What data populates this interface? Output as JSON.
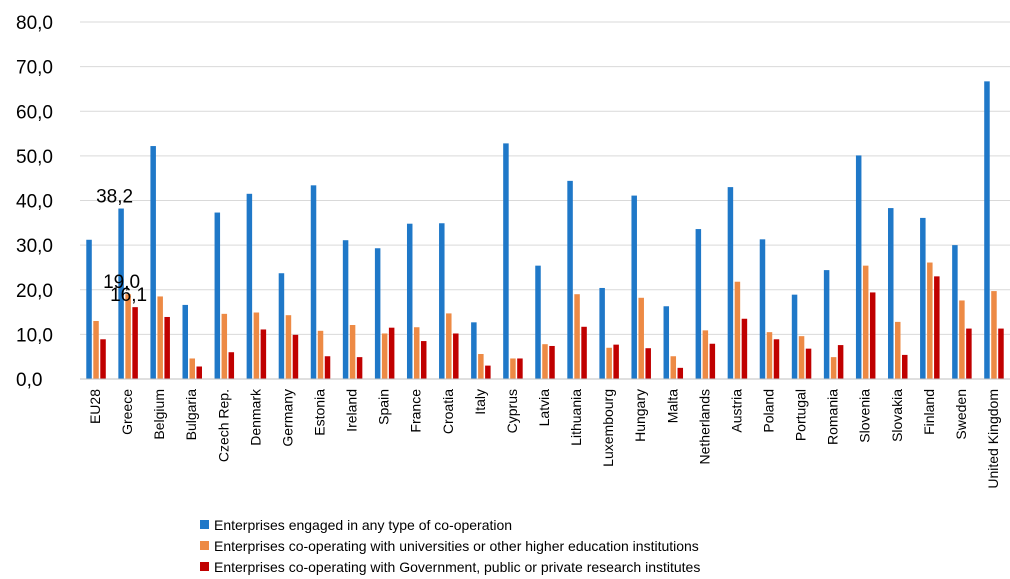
{
  "chart_data": {
    "type": "bar",
    "categories": [
      "EU28",
      "Greece",
      "Belgium",
      "Bulgaria",
      "Czech Rep.",
      "Denmark",
      "Germany",
      "Estonia",
      "Ireland",
      "Spain",
      "France",
      "Croatia",
      "Italy",
      "Cyprus",
      "Latvia",
      "Lithuania",
      "Luxembourg",
      "Hungary",
      "Malta",
      "Netherlands",
      "Austria",
      "Poland",
      "Portugal",
      "Romania",
      "Slovenia",
      "Slovakia",
      "Finland",
      "Sweden",
      "United Kingdom"
    ],
    "series": [
      {
        "name": "Enterprises engaged in any type of co-operation",
        "color": "#1f78c8",
        "values": [
          31.2,
          38.2,
          52.2,
          16.6,
          37.3,
          41.5,
          23.7,
          43.4,
          31.1,
          29.3,
          34.8,
          34.9,
          12.7,
          52.8,
          25.4,
          44.4,
          20.4,
          41.1,
          16.3,
          33.6,
          43.0,
          31.3,
          18.9,
          24.4,
          50.1,
          38.3,
          36.1,
          30.0,
          66.7
        ]
      },
      {
        "name": "Enterprises co-operating with universities or other higher education institutions",
        "color": "#ed8a45",
        "values": [
          13.0,
          19.0,
          18.5,
          4.6,
          14.6,
          14.9,
          14.3,
          10.8,
          12.1,
          10.2,
          11.6,
          14.7,
          5.6,
          4.6,
          7.8,
          19.0,
          7.0,
          18.2,
          5.1,
          10.9,
          21.8,
          10.5,
          9.6,
          4.9,
          25.4,
          12.8,
          26.1,
          17.6,
          19.7
        ]
      },
      {
        "name": "Enterprises co-operating with Government, public or private research institutes",
        "color": "#c00000",
        "values": [
          8.9,
          16.1,
          13.9,
          2.8,
          6.0,
          11.1,
          9.9,
          5.1,
          4.9,
          11.5,
          8.5,
          10.2,
          3.0,
          4.6,
          7.4,
          11.7,
          7.7,
          6.9,
          2.5,
          7.9,
          13.5,
          8.9,
          6.8,
          7.6,
          19.4,
          5.4,
          23.0,
          11.3,
          11.3
        ]
      }
    ],
    "ylim": [
      0,
      80
    ],
    "yticks": [
      "0,0",
      "10,0",
      "20,0",
      "30,0",
      "40,0",
      "50,0",
      "60,0",
      "70,0",
      "80,0"
    ],
    "annotations": [
      {
        "text": "38,2",
        "category": "Greece",
        "series": 0
      },
      {
        "text": "19,0",
        "category": "Greece",
        "series": 1
      },
      {
        "text": "16,1",
        "category": "Greece",
        "series": 2
      }
    ],
    "grid": true,
    "legend_placement": "bottom"
  }
}
